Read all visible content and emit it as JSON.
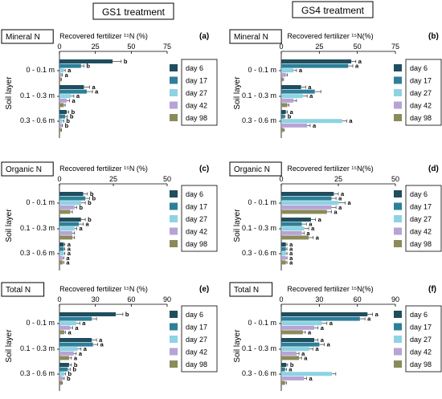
{
  "headers": [
    "GS1 treatment",
    "GS4 treatment"
  ],
  "legend_labels": [
    "day 6",
    "day 17",
    "day 27",
    "day 42",
    "day 98"
  ],
  "colors": [
    "#1f4e5f",
    "#2e7f99",
    "#8dd3e3",
    "#b7a3d6",
    "#8b8b5a"
  ],
  "chart_data": [
    {
      "panel": "(a)",
      "type": "bar",
      "orientation": "horizontal",
      "box_label": "Mineral N",
      "xlabel": "Recovered fertilizer ¹⁵N (%)",
      "ylabel": "Soil layer",
      "categories": [
        "0 - 0.1 m",
        "0.1 - 0.3 m",
        "0.3 - 0.6 m"
      ],
      "xlim": [
        0,
        75
      ],
      "xticks": [
        "0",
        "25",
        "50",
        "75"
      ],
      "series": [
        {
          "name": "day 6",
          "values": [
            37,
            17,
            5
          ],
          "errors": [
            6,
            4,
            1.5
          ]
        },
        {
          "name": "day 17",
          "values": [
            15,
            19,
            4
          ],
          "errors": [
            2,
            4,
            1.5
          ]
        },
        {
          "name": "day 27",
          "values": [
            3,
            8,
            2
          ],
          "errors": [
            1,
            2,
            1
          ]
        },
        {
          "name": "day 42",
          "values": [
            1.5,
            5,
            1.5
          ],
          "errors": [
            0.5,
            2,
            0.5
          ]
        },
        {
          "name": "day 98",
          "values": [
            1,
            3,
            1
          ],
          "errors": [
            0.5,
            1,
            0.5
          ]
        }
      ],
      "letters": [
        [
          "b",
          "b",
          "a",
          "a",
          ""
        ],
        [
          "a",
          "a",
          "a",
          "a",
          ""
        ],
        [
          "b",
          "b",
          "b",
          "b",
          ""
        ]
      ]
    },
    {
      "panel": "(b)",
      "type": "bar",
      "orientation": "horizontal",
      "box_label": "Mineral N",
      "xlabel": "Recovered fertilizer ¹⁵N(%)",
      "ylabel": "Soil layer",
      "categories": [
        "0 - 0.1 m",
        "0.1 - 0.3 m",
        "0.3 - 0.6 m"
      ],
      "xlim": [
        0,
        75
      ],
      "xticks": [
        "0",
        "25",
        "50",
        "75"
      ],
      "series": [
        {
          "name": "day 6",
          "values": [
            46,
            13,
            3
          ],
          "errors": [
            3,
            3,
            1
          ]
        },
        {
          "name": "day 17",
          "values": [
            44,
            22,
            2
          ],
          "errors": [
            3,
            4,
            0.5
          ]
        },
        {
          "name": "day 27",
          "values": [
            8,
            14,
            40
          ],
          "errors": [
            2,
            3,
            3
          ]
        },
        {
          "name": "day 42",
          "values": [
            3,
            8,
            17
          ],
          "errors": [
            1,
            2,
            2
          ]
        },
        {
          "name": "day 98",
          "values": [
            1,
            4,
            1.5
          ],
          "errors": [
            0.5,
            1,
            0.5
          ]
        }
      ],
      "letters": [
        [
          "a",
          "a",
          "a",
          "",
          ""
        ],
        [
          "a",
          "",
          "a",
          "",
          ""
        ],
        [
          "a",
          "b",
          "a",
          "a",
          ""
        ]
      ]
    },
    {
      "panel": "(c)",
      "type": "bar",
      "orientation": "horizontal",
      "box_label": "Organic N",
      "xlabel": "Recovered fertilizer ¹⁵N (%)",
      "ylabel": "Soil layer",
      "categories": [
        "0 - 0.1 m",
        "0.1 - 0.3 m",
        "0.3 - 0.6 m"
      ],
      "xlim": [
        0,
        50
      ],
      "xticks": [
        "0",
        "25",
        "50"
      ],
      "series": [
        {
          "name": "day 6",
          "values": [
            11,
            10,
            2
          ],
          "errors": [
            2,
            2,
            0.5
          ]
        },
        {
          "name": "day 17",
          "values": [
            12,
            9,
            2
          ],
          "errors": [
            2,
            2,
            0.5
          ]
        },
        {
          "name": "day 27",
          "values": [
            10,
            7,
            2
          ],
          "errors": [
            2,
            1,
            0.5
          ]
        },
        {
          "name": "day 42",
          "values": [
            7,
            6,
            1.5
          ],
          "errors": [
            1,
            1,
            0.5
          ]
        },
        {
          "name": "day 98",
          "values": [
            5,
            6,
            1.5
          ],
          "errors": [
            1,
            1,
            0.5
          ]
        }
      ],
      "letters": [
        [
          "b",
          "b",
          "b",
          "b",
          ""
        ],
        [
          "b",
          "a",
          "a",
          "",
          ""
        ],
        [
          "a",
          "a",
          "a",
          "a",
          "a"
        ]
      ]
    },
    {
      "panel": "(d)",
      "type": "bar",
      "orientation": "horizontal",
      "box_label": "Organic N",
      "xlabel": "Recovered fertilizer ¹⁵N(%)",
      "ylabel": "Soil layer",
      "categories": [
        "0 - 0.1 m",
        "0.1 - 0.3 m",
        "0.3 - 0.6 m"
      ],
      "xlim": [
        0,
        50
      ],
      "xticks": [
        "0",
        "25",
        "50"
      ],
      "series": [
        {
          "name": "day 6",
          "values": [
            23,
            13,
            2
          ],
          "errors": [
            2,
            2,
            0.5
          ]
        },
        {
          "name": "day 17",
          "values": [
            22,
            9,
            2
          ],
          "errors": [
            2,
            2,
            0.5
          ]
        },
        {
          "name": "day 27",
          "values": [
            25,
            10,
            2
          ],
          "errors": [
            3,
            2,
            0.5
          ]
        },
        {
          "name": "day 42",
          "values": [
            22,
            9,
            2
          ],
          "errors": [
            2,
            1,
            0.5
          ]
        },
        {
          "name": "day 98",
          "values": [
            20,
            12,
            2
          ],
          "errors": [
            2,
            2,
            0.5
          ]
        }
      ],
      "letters": [
        [
          "a",
          "a",
          "a",
          "a",
          "a"
        ],
        [
          "a",
          "a",
          "a",
          "a",
          "a"
        ],
        [
          "a",
          "a",
          "a",
          "a",
          "a"
        ]
      ]
    },
    {
      "panel": "(e)",
      "type": "bar",
      "orientation": "horizontal",
      "box_label": "Total N",
      "xlabel": "Recovered fertilizer ¹⁵N (%)",
      "ylabel": "Soil layer",
      "categories": [
        "0 - 0.1 m",
        "0.1 - 0.3 m",
        "0.3 - 0.6 m"
      ],
      "xlim": [
        0,
        90
      ],
      "xticks": [
        "0",
        "30",
        "60",
        "90"
      ],
      "series": [
        {
          "name": "day 6",
          "values": [
            47,
            27,
            8
          ],
          "errors": [
            6,
            4,
            2
          ]
        },
        {
          "name": "day 17",
          "values": [
            27,
            28,
            7
          ],
          "errors": [
            4,
            4,
            2
          ]
        },
        {
          "name": "day 27",
          "values": [
            14,
            15,
            4
          ],
          "errors": [
            3,
            3,
            1
          ]
        },
        {
          "name": "day 42",
          "values": [
            9,
            12,
            3
          ],
          "errors": [
            2,
            2,
            1
          ]
        },
        {
          "name": "day 98",
          "values": [
            4,
            8,
            2
          ],
          "errors": [
            1,
            2,
            0.5
          ]
        }
      ],
      "letters": [
        [
          "b",
          "",
          "a",
          "a",
          "a"
        ],
        [
          "a",
          "a",
          "a",
          "a",
          "a"
        ],
        [
          "b",
          "b",
          "b",
          "b",
          ""
        ]
      ]
    },
    {
      "panel": "(f)",
      "type": "bar",
      "orientation": "horizontal",
      "box_label": "Total N",
      "xlabel": "Recovered fertilizer ¹⁵N(%)",
      "ylabel": "Soil layer",
      "categories": [
        "0 - 0.1 m",
        "0.1 - 0.3 m",
        "0.3 - 0.6 m"
      ],
      "xlim": [
        0,
        90
      ],
      "xticks": [
        "0",
        "30",
        "60",
        "90"
      ],
      "series": [
        {
          "name": "day 6",
          "values": [
            68,
            26,
            4
          ],
          "errors": [
            4,
            3,
            1
          ]
        },
        {
          "name": "day 17",
          "values": [
            62,
            30,
            3
          ],
          "errors": [
            4,
            4,
            1
          ]
        },
        {
          "name": "day 27",
          "values": [
            32,
            22,
            40
          ],
          "errors": [
            4,
            3,
            3
          ]
        },
        {
          "name": "day 42",
          "values": [
            26,
            12,
            18
          ],
          "errors": [
            3,
            2,
            2
          ]
        },
        {
          "name": "day 98",
          "values": [
            17,
            14,
            3
          ],
          "errors": [
            2,
            2,
            1
          ]
        }
      ],
      "letters": [
        [
          "a",
          "a",
          "a",
          "a",
          "a"
        ],
        [
          "a",
          "a",
          "a",
          "a",
          "a"
        ],
        [
          "b",
          "a",
          "",
          "a",
          ""
        ]
      ]
    }
  ]
}
